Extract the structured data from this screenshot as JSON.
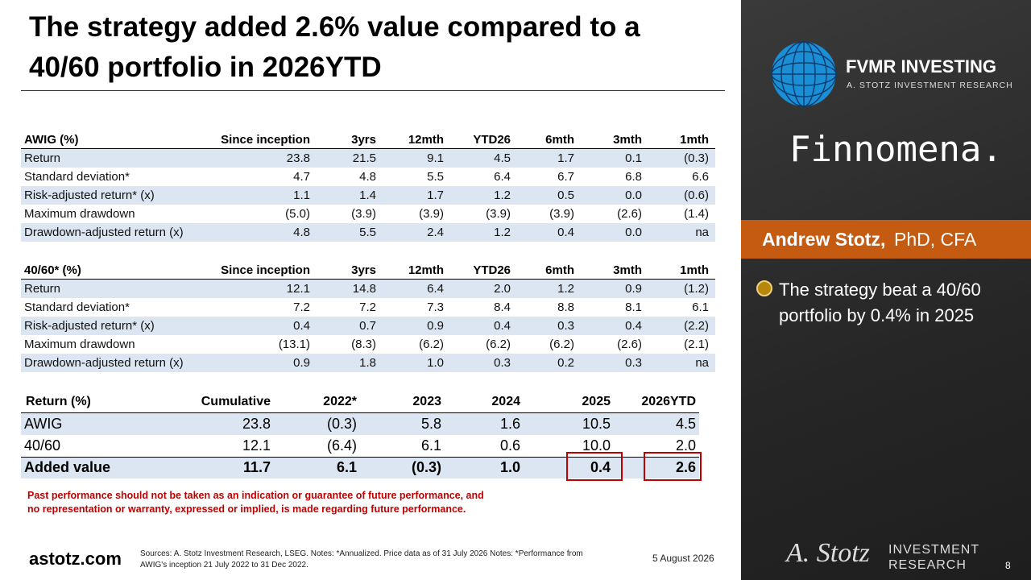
{
  "header": {
    "title_lines": [
      "The strategy added 2.6% value compared to a",
      "40/60 portfolio in 2026YTD"
    ]
  },
  "table_awig": {
    "header": [
      "AWIG (%)",
      "Since inception",
      "3yrs",
      "12mth",
      "YTD26",
      "6mth",
      "3mth",
      "1mth"
    ],
    "rows": [
      [
        "Return",
        "23.8",
        "21.5",
        "9.1",
        "4.5",
        "1.7",
        "0.1",
        "(0.3)"
      ],
      [
        "Standard deviation*",
        "4.7",
        "4.8",
        "5.5",
        "6.4",
        "6.7",
        "6.8",
        "6.6"
      ],
      [
        "Risk-adjusted return* (x)",
        "1.1",
        "1.4",
        "1.7",
        "1.2",
        "0.5",
        "0.0",
        "(0.6)"
      ],
      [
        "Maximum drawdown",
        "(5.0)",
        "(3.9)",
        "(3.9)",
        "(3.9)",
        "(3.9)",
        "(2.6)",
        "(1.4)"
      ],
      [
        "Drawdown-adjusted return (x)",
        "4.8",
        "5.5",
        "2.4",
        "1.2",
        "0.4",
        "0.0",
        "na"
      ]
    ]
  },
  "table_6040": {
    "header": [
      "40/60* (%)",
      "Since inception",
      "3yrs",
      "12mth",
      "YTD26",
      "6mth",
      "3mth",
      "1mth"
    ],
    "rows": [
      [
        "Return",
        "12.1",
        "14.8",
        "6.4",
        "2.0",
        "1.2",
        "0.9",
        "(1.2)"
      ],
      [
        "Standard deviation*",
        "7.2",
        "7.2",
        "7.3",
        "8.4",
        "8.8",
        "8.1",
        "6.1"
      ],
      [
        "Risk-adjusted return* (x)",
        "0.4",
        "0.7",
        "0.9",
        "0.4",
        "0.3",
        "0.4",
        "(2.2)"
      ],
      [
        "Maximum drawdown",
        "(13.1)",
        "(8.3)",
        "(6.2)",
        "(6.2)",
        "(6.2)",
        "(2.6)",
        "(2.1)"
      ],
      [
        "Drawdown-adjusted return (x)",
        "0.9",
        "1.8",
        "1.0",
        "0.3",
        "0.2",
        "0.3",
        "na"
      ]
    ]
  },
  "table_returns": {
    "header": [
      "Return (%)",
      "Cumulative",
      "2022*",
      "2023",
      "2024",
      "2025",
      "2026YTD"
    ],
    "rows": [
      [
        "AWIG",
        "23.8",
        "(0.3)",
        "5.8",
        "1.6",
        "10.5",
        "4.5"
      ],
      [
        "40/60",
        "12.1",
        "(6.4)",
        "6.1",
        "0.6",
        "10.0",
        "2.0"
      ],
      [
        "Added value",
        "11.7",
        "6.1",
        "(0.3)",
        "1.0",
        "0.4",
        "2.6"
      ]
    ]
  },
  "disclaimer_lines": [
    "Past performance should not be taken as an indication or guarantee of future performance, and",
    "no representation or warranty, expressed or implied, is made regarding future performance."
  ],
  "sidebar": {
    "brand": "FVMR INVESTING",
    "brand_sub": "A. STOTZ INVESTMENT RESEARCH",
    "partner": "Finnomena.",
    "presenter_name": "Andrew Stotz,",
    "presenter_title": "PhD, CFA",
    "bullet": "The strategy beat a 40/60 portfolio by 0.4% in 2025"
  },
  "footer": {
    "site": "astotz.com",
    "sources_lines": [
      "Sources: A. Stotz Investment Research, LSEG. Notes: *Annualized. Price data as of 31 July 2026 Notes: *Performance from",
      "AWIG's inception 21 July 2022 to 31 Dec 2022."
    ],
    "date": "5 August 2026",
    "signature": "A. Stotz",
    "logo_line1": "INVESTMENT",
    "logo_line2": "RESEARCH",
    "page": "8"
  }
}
